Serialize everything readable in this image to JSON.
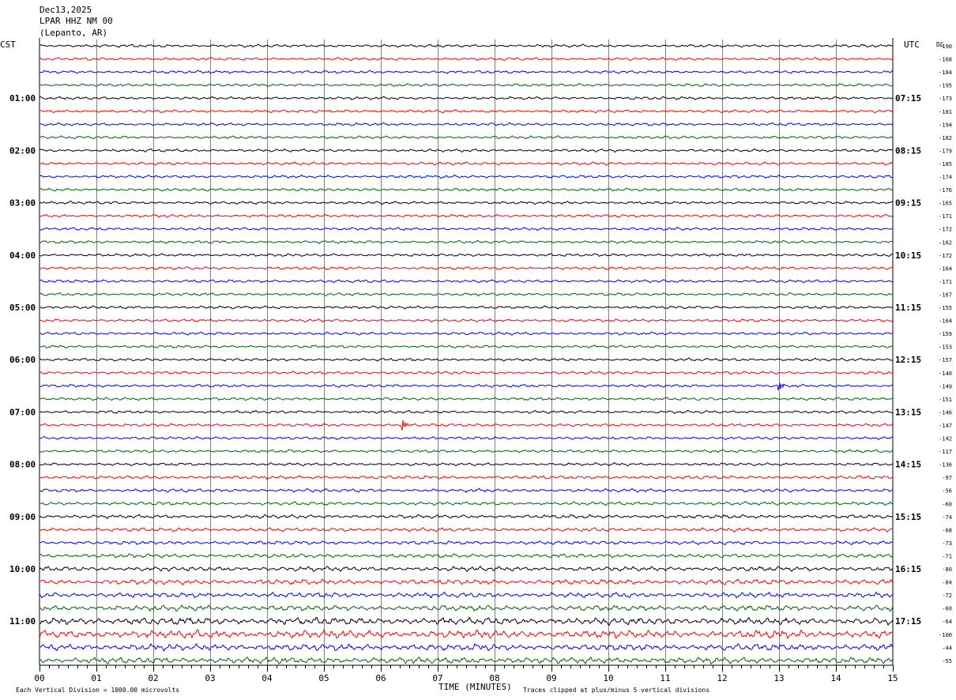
{
  "header": {
    "date": "Dec13,2025",
    "station": "LPAR HHZ NM 00",
    "location": "(Lepanto, AR)"
  },
  "left_timezone": "CST",
  "right_timezone": "UTC",
  "dc_label": "DC",
  "footer": {
    "x_axis_title": "TIME (MINUTES)",
    "scale_note": "Each Vertical Division = 1000.00 microvolts",
    "clip_note": "Traces clipped at plus/minus 5 vertical divisions"
  },
  "chart_data": {
    "type": "line",
    "title": "LPAR HHZ NM 00",
    "xlabel": "TIME (MINUTES)",
    "xlim": [
      0,
      15
    ],
    "x_ticks": [
      "00",
      "01",
      "02",
      "03",
      "04",
      "05",
      "06",
      "07",
      "08",
      "09",
      "10",
      "11",
      "12",
      "13",
      "14",
      "15"
    ],
    "trace_minutes": 15,
    "trace_count": 48,
    "trace_colors": [
      "#000000",
      "#ff0000",
      "#0000ff",
      "#006400"
    ],
    "left_hour_labels": [
      "01:00",
      "02:00",
      "03:00",
      "04:00",
      "05:00",
      "06:00",
      "07:00",
      "08:00",
      "09:00",
      "10:00",
      "11:00"
    ],
    "right_hour_labels": [
      "07:15",
      "08:15",
      "09:15",
      "10:15",
      "11:15",
      "12:15",
      "13:15",
      "14:15",
      "15:15",
      "16:15",
      "17:15"
    ],
    "dc_offsets": [
      -190,
      -168,
      -184,
      -195,
      -173,
      -181,
      -194,
      -182,
      -179,
      -185,
      -174,
      -176,
      -165,
      -171,
      -172,
      -162,
      -172,
      -164,
      -171,
      -167,
      -155,
      -164,
      -159,
      -153,
      -157,
      -140,
      -149,
      -151,
      -146,
      -147,
      -142,
      -117,
      -136,
      -97,
      -56,
      -60,
      -74,
      -68,
      -73,
      -71,
      -80,
      -84,
      -72,
      -60,
      -64,
      -100,
      -44,
      -55
    ],
    "noise_level": [
      1,
      1,
      1,
      1,
      1,
      1,
      1,
      1,
      1,
      1,
      1,
      1,
      1,
      1,
      1,
      1,
      1,
      1,
      1,
      1,
      1,
      1,
      1,
      1,
      1,
      1,
      1,
      1,
      1,
      1,
      1,
      1,
      1,
      1.2,
      1.2,
      1.2,
      1.3,
      1.3,
      1.3,
      1.4,
      1.6,
      1.8,
      1.8,
      2,
      2.5,
      2.8,
      2.3,
      2.2
    ],
    "events": [
      {
        "trace": 26,
        "minute": 13.0,
        "amplitude": 7
      },
      {
        "trace": 29,
        "minute": 6.38,
        "amplitude": 8
      }
    ]
  }
}
